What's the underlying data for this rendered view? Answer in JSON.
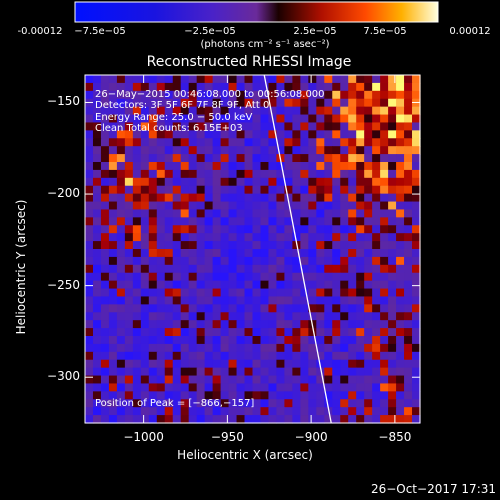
{
  "colorbar": {
    "ticks": [
      "-0.00012",
      "−7.5e−05",
      "−2.5e−05",
      "2.5e−05",
      "7.5e−05",
      "0.00012"
    ],
    "unit_label": "(photons cm⁻² s⁻¹ asec⁻²)",
    "range": [
      -0.00012,
      0.00012
    ]
  },
  "chart_data": {
    "type": "heatmap",
    "title": "Reconstructed RHESSI Image",
    "xlabel": "Heliocentric X (arcsec)",
    "ylabel": "Heliocentric Y (arcsec)",
    "xlim": [
      -1035,
      -835
    ],
    "ylim": [
      -325,
      -135
    ],
    "x_ticks": [
      "−1000",
      "−950",
      "−900",
      "−850"
    ],
    "y_ticks": [
      "−150",
      "−200",
      "−250",
      "−300"
    ],
    "limb_line": {
      "x_start": -928,
      "y_start": -135,
      "x_end": -888,
      "y_end": -325
    },
    "info_lines": [
      "26−May−2015 00:46:08.000 to 00:56:08.000",
      "Detectors: 3F 5F 6F 7F 8F 9F, Att 0",
      "Energy Range: 25.0 − 50.0 keV",
      "Clean     Total counts: 6.15E+03"
    ],
    "peak_label": "Position of Peak = [−866,−157]",
    "peak": [
      -866,
      -157
    ]
  },
  "footer": {
    "date": "26−Oct−2017 17:31"
  }
}
